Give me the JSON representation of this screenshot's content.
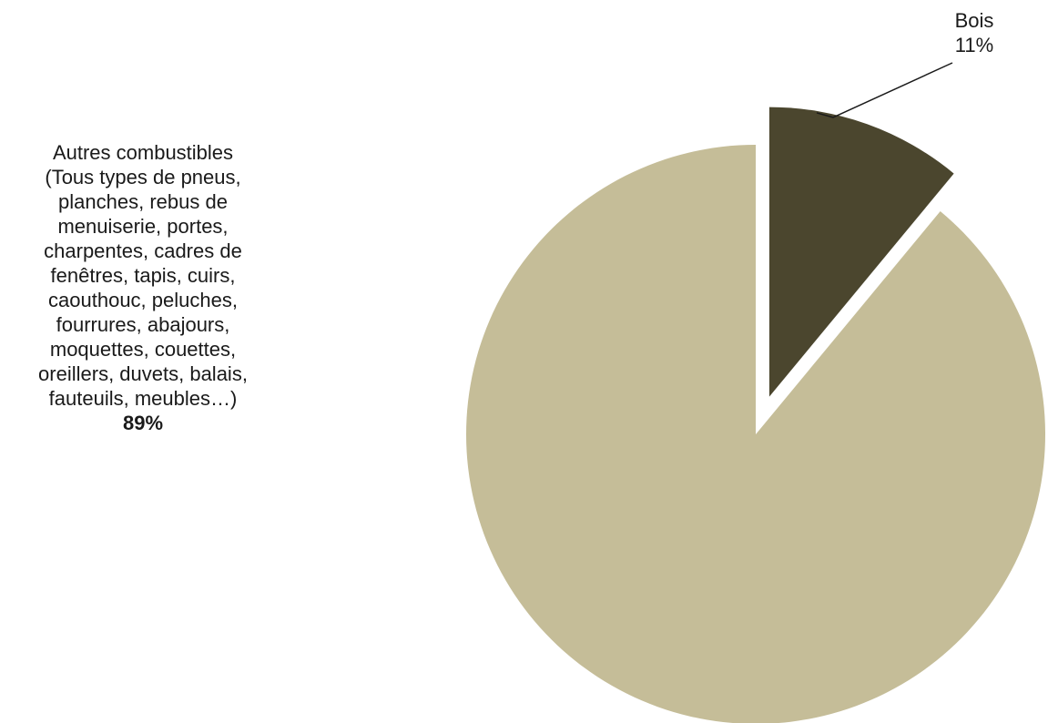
{
  "chart_data": {
    "type": "pie",
    "categories": [
      "Bois",
      "Autres combustibles"
    ],
    "values": [
      11,
      89
    ],
    "colors": [
      "#4b462e",
      "#c5bd98"
    ],
    "exploded": [
      "Bois"
    ],
    "labels": [
      {
        "name_lines": [
          "Bois"
        ],
        "value_text": "11%",
        "value_bold": false,
        "leader_line": true
      },
      {
        "name_lines": [
          "Autres combustibles",
          "(Tous types de pneus,",
          "planches, rebus de",
          "menuiserie, portes,",
          "charpentes, cadres de",
          "fenêtres, tapis, cuirs,",
          "caouthouc, peluches,",
          "fourrures, abajours,",
          "moquettes, couettes,",
          "oreillers, duvets, balais,",
          "fauteuils, meubles…)"
        ],
        "value_text": "89%",
        "value_bold": true,
        "leader_line": false
      }
    ],
    "start_angle_deg": 0,
    "direction": "clockwise",
    "legend": "none"
  }
}
